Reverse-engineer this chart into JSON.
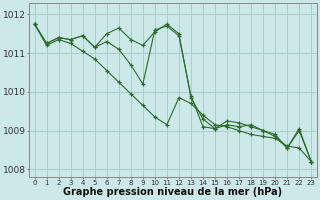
{
  "background_color": "#cce8e8",
  "grid_color": "#aacccc",
  "line_color": "#2d6b2d",
  "hours": [
    0,
    1,
    2,
    3,
    4,
    5,
    6,
    7,
    8,
    9,
    10,
    11,
    12,
    13,
    14,
    15,
    16,
    17,
    18,
    19,
    20,
    21,
    22,
    23
  ],
  "series1": [
    1011.75,
    1011.25,
    1011.4,
    1011.35,
    1011.45,
    1011.15,
    1011.5,
    1011.65,
    1011.35,
    1011.2,
    1011.55,
    1011.75,
    1011.5,
    1009.85,
    1009.3,
    1009.05,
    1009.25,
    1009.2,
    1009.1,
    1009.0,
    1008.85,
    1008.55,
    1009.0,
    1008.2
  ],
  "series2": [
    1011.75,
    1011.25,
    1011.4,
    1011.35,
    1011.45,
    1011.15,
    1011.3,
    1011.1,
    1010.7,
    1010.2,
    1011.6,
    1011.7,
    1011.45,
    1009.9,
    1009.1,
    1009.05,
    1009.15,
    1009.1,
    1009.15,
    1009.0,
    1008.9,
    1008.55,
    1009.05,
    1008.2
  ],
  "series3": [
    1011.75,
    1011.2,
    1011.35,
    1011.25,
    1011.05,
    1010.85,
    1010.55,
    1010.25,
    1009.95,
    1009.65,
    1009.35,
    1009.15,
    1009.85,
    1009.7,
    1009.4,
    1009.15,
    1009.1,
    1009.0,
    1008.9,
    1008.85,
    1008.8,
    1008.6,
    1008.55,
    1008.2
  ],
  "ylim": [
    1007.8,
    1012.3
  ],
  "yticks": [
    1008,
    1009,
    1010,
    1011,
    1012
  ],
  "xlabel": "Graphe pression niveau de la mer (hPa)",
  "xlabel_fontsize": 7.0,
  "tick_fontsize": 6.5,
  "xtick_fontsize": 5.0
}
